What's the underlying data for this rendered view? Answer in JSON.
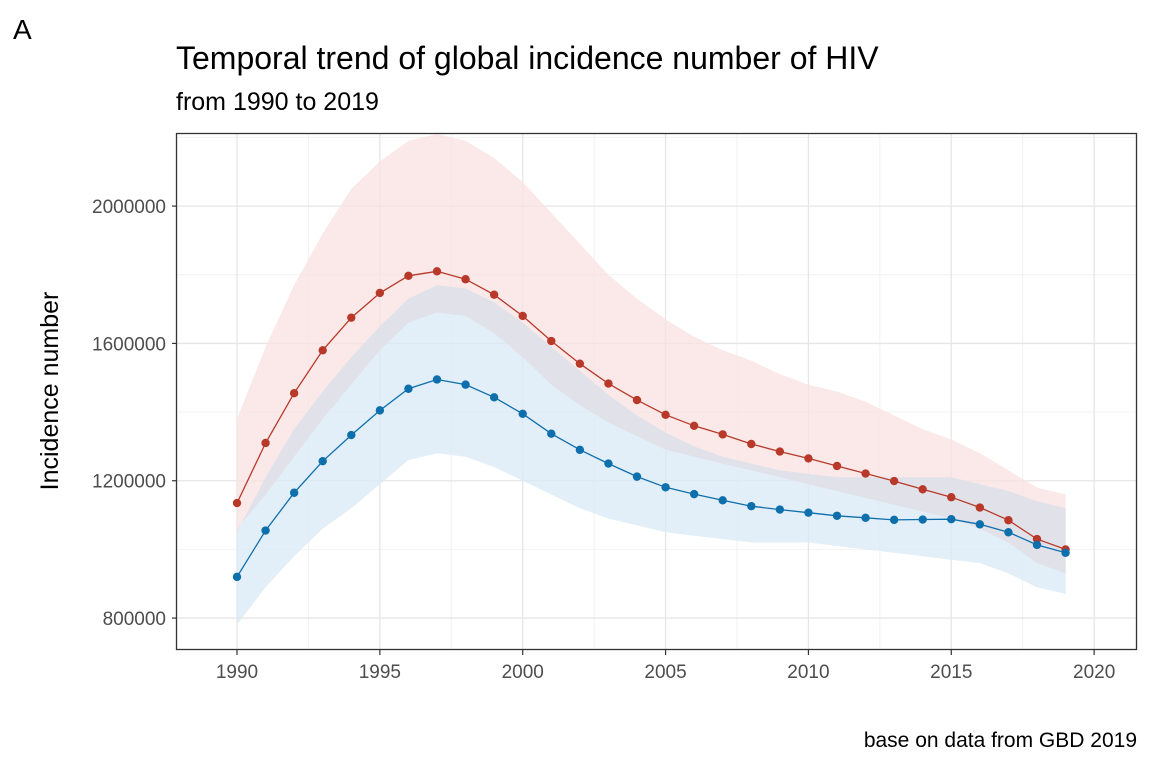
{
  "panel_tag": "A",
  "title": "Temporal trend of global incidence number of HIV",
  "subtitle": "from 1990 to 2019",
  "caption": "base on data from GBD 2019",
  "colors": {
    "series_a": "#b8392a",
    "series_a_band": "#f8e2e0",
    "series_b": "#0e6fad",
    "series_b_band": "#d9eaf5",
    "overlap_band": "#e0e0e7",
    "grid_major": "#e6e6e6",
    "grid_minor": "#f2f2f2"
  },
  "chart_data": {
    "type": "line",
    "title": "Temporal trend of global incidence number of HIV",
    "subtitle": "from 1990 to 2019",
    "xlabel": "",
    "ylabel": "Incidence number",
    "xlim": [
      1987.9,
      2021.5
    ],
    "ylim": [
      707000,
      2210000
    ],
    "x_ticks": [
      "1990",
      "1995",
      "2000",
      "2005",
      "2010",
      "2015",
      "2020"
    ],
    "y_ticks": [
      "800000",
      "1200000",
      "1600000",
      "2000000"
    ],
    "grid": true,
    "legend": "none",
    "x": [
      1990,
      1991,
      1992,
      1993,
      1994,
      1995,
      1996,
      1997,
      1998,
      1999,
      2000,
      2001,
      2002,
      2003,
      2004,
      2005,
      2006,
      2007,
      2008,
      2009,
      2010,
      2011,
      2012,
      2013,
      2014,
      2015,
      2016,
      2017,
      2018,
      2019
    ],
    "series": [
      {
        "color": "#b8392a",
        "values": [
          1135000,
          1310000,
          1455000,
          1580000,
          1675000,
          1747000,
          1797000,
          1810000,
          1787000,
          1742000,
          1680000,
          1607000,
          1541000,
          1483000,
          1435000,
          1392000,
          1360000,
          1335000,
          1307000,
          1285000,
          1265000,
          1243000,
          1221000,
          1199000,
          1175000,
          1152000,
          1122000,
          1085000,
          1030000,
          1000000
        ],
        "lower": [
          1060000,
          1160000,
          1270000,
          1380000,
          1480000,
          1580000,
          1660000,
          1690000,
          1680000,
          1630000,
          1560000,
          1480000,
          1420000,
          1370000,
          1330000,
          1290000,
          1270000,
          1250000,
          1230000,
          1210000,
          1190000,
          1170000,
          1150000,
          1130000,
          1110000,
          1090000,
          1060000,
          1020000,
          960000,
          930000
        ],
        "upper": [
          1380000,
          1590000,
          1770000,
          1920000,
          2050000,
          2130000,
          2190000,
          2210000,
          2190000,
          2140000,
          2070000,
          1980000,
          1890000,
          1800000,
          1730000,
          1670000,
          1620000,
          1580000,
          1550000,
          1510000,
          1480000,
          1460000,
          1430000,
          1390000,
          1350000,
          1320000,
          1280000,
          1230000,
          1180000,
          1160000
        ]
      },
      {
        "color": "#0e6fad",
        "values": [
          920000,
          1055000,
          1165000,
          1257000,
          1333000,
          1405000,
          1468000,
          1495000,
          1480000,
          1443000,
          1395000,
          1337000,
          1290000,
          1250000,
          1212000,
          1181000,
          1161000,
          1143000,
          1126000,
          1116000,
          1107000,
          1098000,
          1092000,
          1086000,
          1087000,
          1088000,
          1073000,
          1050000,
          1013000,
          990000
        ],
        "lower": [
          780000,
          890000,
          980000,
          1060000,
          1120000,
          1190000,
          1260000,
          1280000,
          1270000,
          1240000,
          1200000,
          1160000,
          1120000,
          1090000,
          1070000,
          1050000,
          1040000,
          1030000,
          1020000,
          1020000,
          1020000,
          1010000,
          1000000,
          990000,
          980000,
          970000,
          960000,
          930000,
          890000,
          870000
        ],
        "upper": [
          1050000,
          1210000,
          1350000,
          1460000,
          1560000,
          1650000,
          1730000,
          1770000,
          1760000,
          1720000,
          1660000,
          1590000,
          1520000,
          1450000,
          1390000,
          1340000,
          1300000,
          1270000,
          1250000,
          1230000,
          1220000,
          1210000,
          1210000,
          1210000,
          1210000,
          1210000,
          1190000,
          1170000,
          1140000,
          1120000
        ]
      }
    ]
  }
}
